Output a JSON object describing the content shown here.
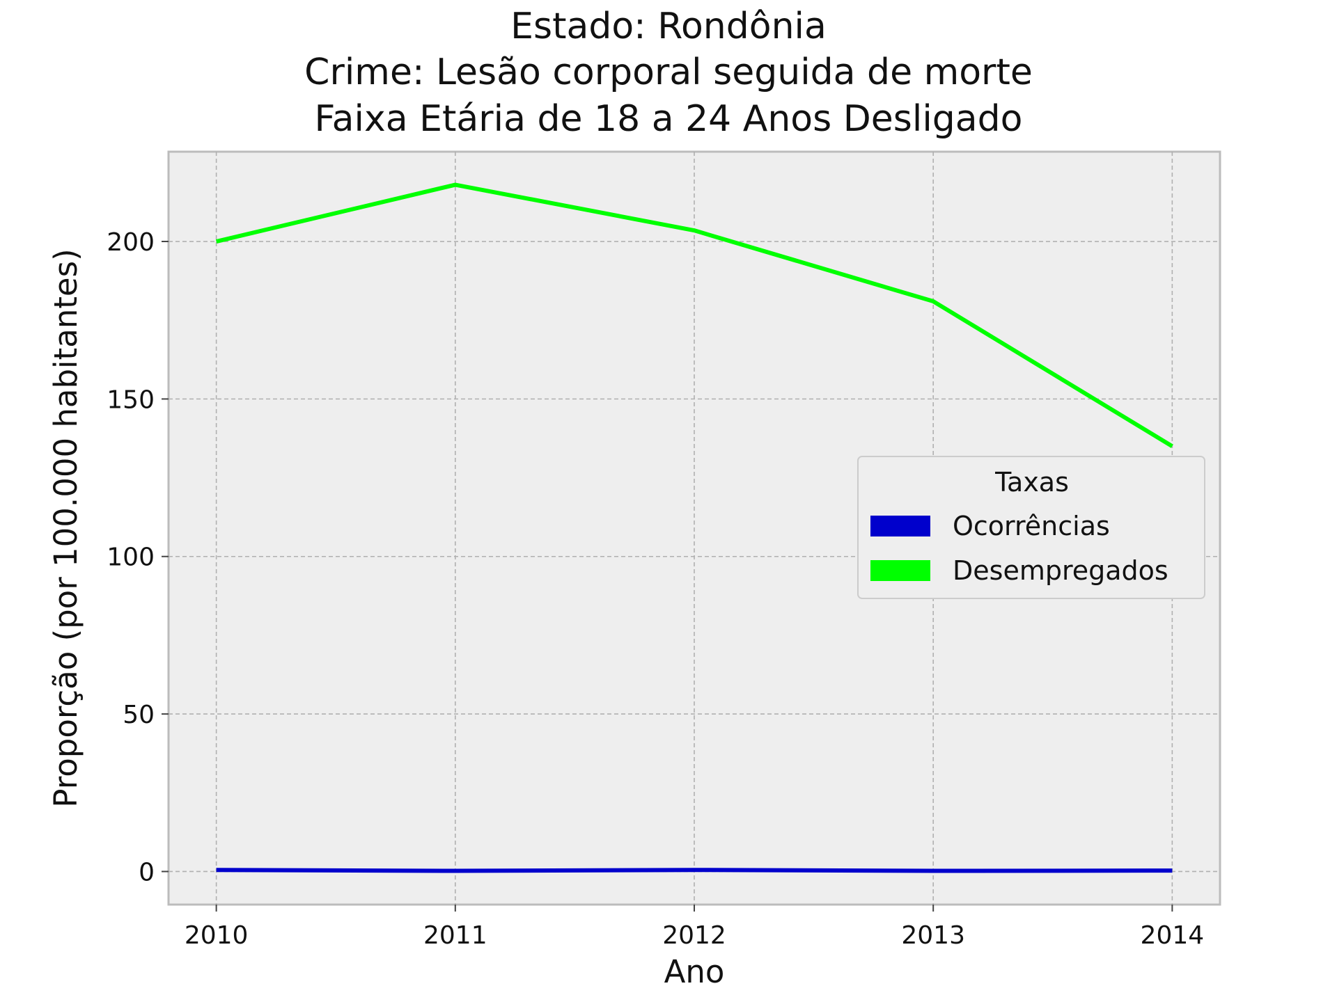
{
  "chart_data": {
    "type": "line",
    "title": [
      "Estado: Rondônia",
      "Crime: Lesão corporal seguida de morte",
      "Faixa Etária de 18 a 24 Anos   Desligado"
    ],
    "xlabel": "Ano",
    "ylabel": "Proporção (por 100.000 habitantes)",
    "x": [
      2010,
      2011,
      2012,
      2013,
      2014
    ],
    "xticks": [
      "2010",
      "2011",
      "2012",
      "2013",
      "2014"
    ],
    "yticks": [
      0,
      50,
      100,
      150,
      200
    ],
    "xlim": [
      2009.8,
      2014.2
    ],
    "ylim": [
      -10.5,
      228.5
    ],
    "grid": true,
    "legend": {
      "title": "Taxas",
      "placement": "center-right"
    },
    "series": [
      {
        "name": "Ocorrências",
        "color": "#0000cc",
        "values": [
          0.5,
          0.2,
          0.5,
          0.2,
          0.3
        ]
      },
      {
        "name": "Desempregados",
        "color": "#00ff00",
        "values": [
          200,
          218,
          203.5,
          181,
          135
        ]
      }
    ]
  }
}
